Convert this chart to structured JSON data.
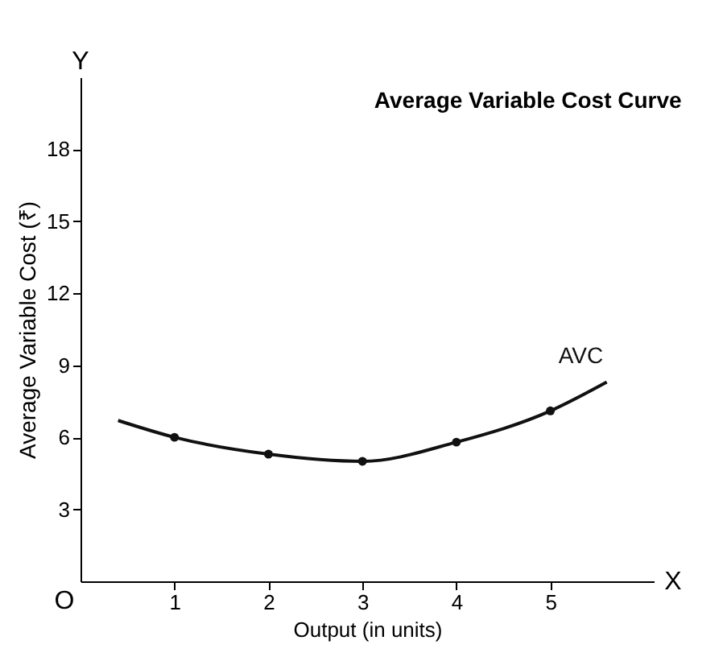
{
  "chart_data": {
    "type": "line",
    "title": "Average Variable Cost Curve",
    "xlabel": "Output (in units)",
    "ylabel": "Average Variable Cost (₹)",
    "xlim": [
      0,
      6.1
    ],
    "ylim": [
      0,
      21
    ],
    "xticks": [
      1,
      2,
      3,
      4,
      5
    ],
    "yticks": [
      3,
      6,
      9,
      12,
      15,
      18
    ],
    "grid": false,
    "series": [
      {
        "name": "AVC",
        "color": "#111111",
        "x": [
          0.4,
          1,
          2,
          3,
          4,
          5,
          5.6
        ],
        "values": [
          6.7,
          6.0,
          5.3,
          5.0,
          5.8,
          7.1,
          8.3
        ],
        "marker": "none"
      },
      {
        "type": "scatter",
        "color": "#111111",
        "x": [
          1,
          2,
          3,
          4,
          5
        ],
        "values": [
          6.0,
          5.3,
          5.0,
          5.8,
          7.1
        ],
        "marker": "circle"
      }
    ],
    "annotations": [
      "O",
      "X",
      "Y"
    ]
  }
}
